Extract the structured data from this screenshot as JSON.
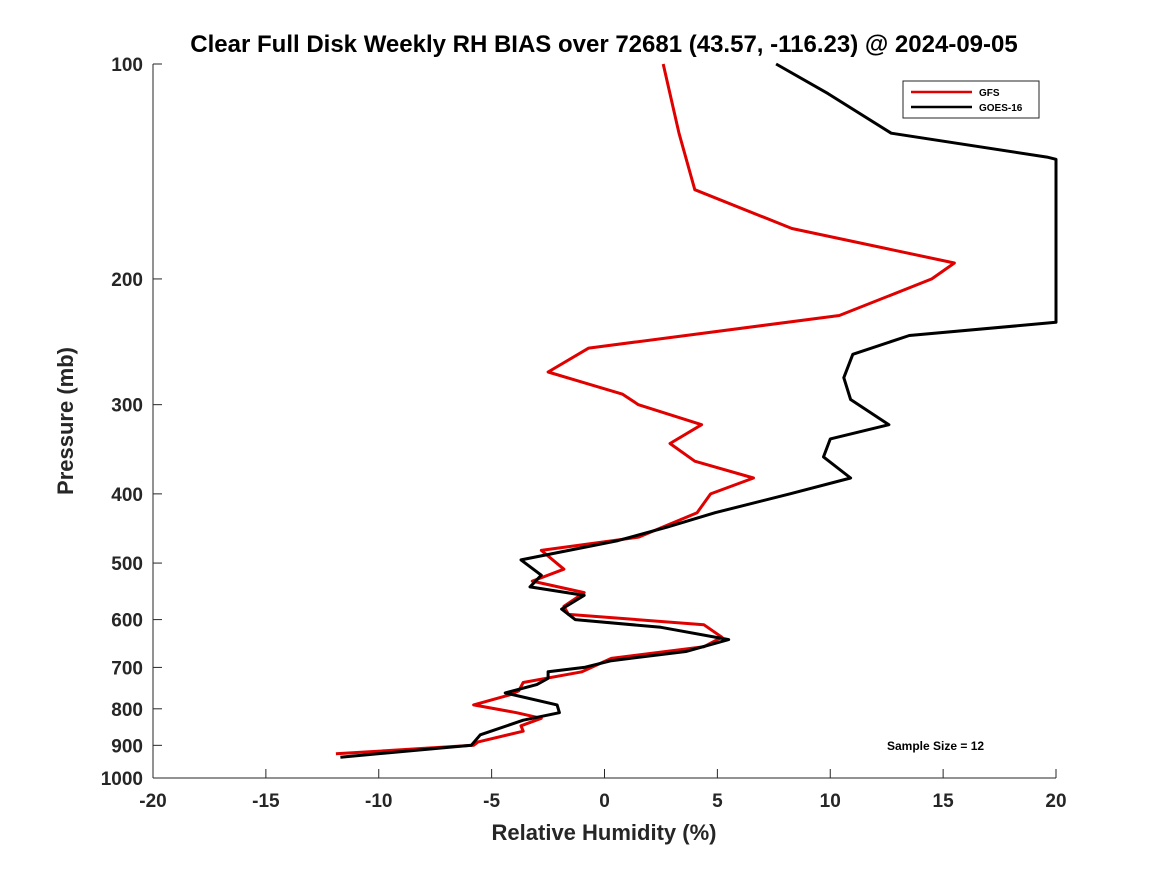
{
  "chart_data": {
    "type": "line",
    "title": "Clear Full Disk Weekly RH BIAS over 72681 (43.57, -116.23) @ 2024-09-05",
    "xlabel": "Relative Humidity (%)",
    "ylabel": "Pressure (mb)",
    "xlim": [
      -20,
      20
    ],
    "ylim": [
      1000,
      100
    ],
    "y_scale": "log",
    "y_reversed": true,
    "x_ticks": [
      -20,
      -15,
      -10,
      -5,
      0,
      5,
      10,
      15,
      20
    ],
    "y_ticks": [
      100,
      200,
      300,
      400,
      500,
      600,
      700,
      800,
      900,
      1000
    ],
    "grid": false,
    "legend_position": "top-right",
    "annotation": "Sample Size = 12",
    "series": [
      {
        "name": "GFS",
        "color": "#e00000",
        "points": [
          {
            "x": 2.6,
            "p": 100
          },
          {
            "x": 3.3,
            "p": 125
          },
          {
            "x": 4.0,
            "p": 150
          },
          {
            "x": 8.3,
            "p": 170
          },
          {
            "x": 15.5,
            "p": 190
          },
          {
            "x": 14.5,
            "p": 200
          },
          {
            "x": 10.4,
            "p": 225
          },
          {
            "x": -0.7,
            "p": 250
          },
          {
            "x": -2.5,
            "p": 270
          },
          {
            "x": 0.8,
            "p": 290
          },
          {
            "x": 1.5,
            "p": 300
          },
          {
            "x": 4.3,
            "p": 320
          },
          {
            "x": 2.9,
            "p": 340
          },
          {
            "x": 4.0,
            "p": 360
          },
          {
            "x": 6.6,
            "p": 380
          },
          {
            "x": 4.7,
            "p": 400
          },
          {
            "x": 4.1,
            "p": 425
          },
          {
            "x": 1.5,
            "p": 460
          },
          {
            "x": -2.8,
            "p": 480
          },
          {
            "x": -1.8,
            "p": 510
          },
          {
            "x": -3.2,
            "p": 530
          },
          {
            "x": -0.9,
            "p": 550
          },
          {
            "x": -1.8,
            "p": 575
          },
          {
            "x": -1.6,
            "p": 590
          },
          {
            "x": 4.4,
            "p": 610
          },
          {
            "x": 5.2,
            "p": 635
          },
          {
            "x": 4.4,
            "p": 655
          },
          {
            "x": 0.3,
            "p": 680
          },
          {
            "x": -1.0,
            "p": 710
          },
          {
            "x": -3.6,
            "p": 735
          },
          {
            "x": -3.8,
            "p": 755
          },
          {
            "x": -4.2,
            "p": 765
          },
          {
            "x": -5.8,
            "p": 790
          },
          {
            "x": -3.9,
            "p": 810
          },
          {
            "x": -2.8,
            "p": 825
          },
          {
            "x": -3.7,
            "p": 845
          },
          {
            "x": -3.6,
            "p": 860
          },
          {
            "x": -5.6,
            "p": 890
          },
          {
            "x": -5.8,
            "p": 900
          },
          {
            "x": -11.9,
            "p": 925
          }
        ]
      },
      {
        "name": "GOES-16",
        "color": "#000000",
        "points": [
          {
            "x": 7.6,
            "p": 100
          },
          {
            "x": 9.9,
            "p": 110
          },
          {
            "x": 12.7,
            "p": 125
          },
          {
            "x": 19.6,
            "p": 135
          },
          {
            "x": 20.0,
            "p": 136
          },
          {
            "x": 20.0,
            "p": 230
          },
          {
            "x": 13.5,
            "p": 240
          },
          {
            "x": 11.0,
            "p": 255
          },
          {
            "x": 10.6,
            "p": 275
          },
          {
            "x": 10.9,
            "p": 295
          },
          {
            "x": 12.6,
            "p": 320
          },
          {
            "x": 10.0,
            "p": 335
          },
          {
            "x": 9.7,
            "p": 355
          },
          {
            "x": 10.9,
            "p": 380
          },
          {
            "x": 8.2,
            "p": 400
          },
          {
            "x": 4.9,
            "p": 425
          },
          {
            "x": 2.8,
            "p": 445
          },
          {
            "x": 0.6,
            "p": 465
          },
          {
            "x": -3.7,
            "p": 495
          },
          {
            "x": -2.8,
            "p": 520
          },
          {
            "x": -3.3,
            "p": 540
          },
          {
            "x": -0.9,
            "p": 555
          },
          {
            "x": -1.9,
            "p": 580
          },
          {
            "x": -1.3,
            "p": 600
          },
          {
            "x": 2.5,
            "p": 615
          },
          {
            "x": 5.5,
            "p": 640
          },
          {
            "x": 3.6,
            "p": 665
          },
          {
            "x": 0.3,
            "p": 685
          },
          {
            "x": -0.9,
            "p": 700
          },
          {
            "x": -2.5,
            "p": 710
          },
          {
            "x": -2.5,
            "p": 725
          },
          {
            "x": -3.0,
            "p": 740
          },
          {
            "x": -4.4,
            "p": 760
          },
          {
            "x": -2.1,
            "p": 790
          },
          {
            "x": -2.0,
            "p": 810
          },
          {
            "x": -3.6,
            "p": 830
          },
          {
            "x": -5.5,
            "p": 870
          },
          {
            "x": -5.9,
            "p": 900
          },
          {
            "x": -11.7,
            "p": 935
          }
        ]
      }
    ]
  }
}
